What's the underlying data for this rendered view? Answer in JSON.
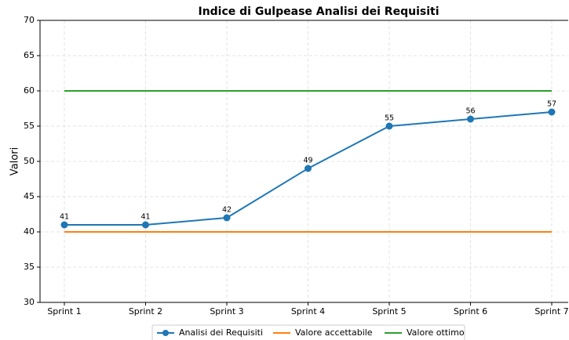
{
  "chart_data": {
    "type": "line",
    "title": "Indice di Gulpease Analisi dei Requisiti",
    "y_label": "Valori",
    "categories": [
      "Sprint 1",
      "Sprint 2",
      "Sprint 3",
      "Sprint 4",
      "Sprint 5",
      "Sprint 6",
      "Sprint 7"
    ],
    "series": [
      {
        "name": "Analisi dei Requisiti",
        "color": "#1f77b4",
        "values": [
          41,
          41,
          42,
          49,
          55,
          56,
          57
        ],
        "markers": true,
        "data_labels": true
      },
      {
        "name": "Valore accettabile",
        "color": "#ff7f0e",
        "values": [
          40,
          40,
          40,
          40,
          40,
          40,
          40
        ]
      },
      {
        "name": "Valore ottimo",
        "color": "#2ca02c",
        "values": [
          60,
          60,
          60,
          60,
          60,
          60,
          60
        ]
      }
    ],
    "ylim": [
      30,
      70
    ],
    "yticks": [
      30,
      35,
      40,
      45,
      50,
      55,
      60,
      65,
      70
    ],
    "grid": true,
    "legend": "bottom"
  }
}
